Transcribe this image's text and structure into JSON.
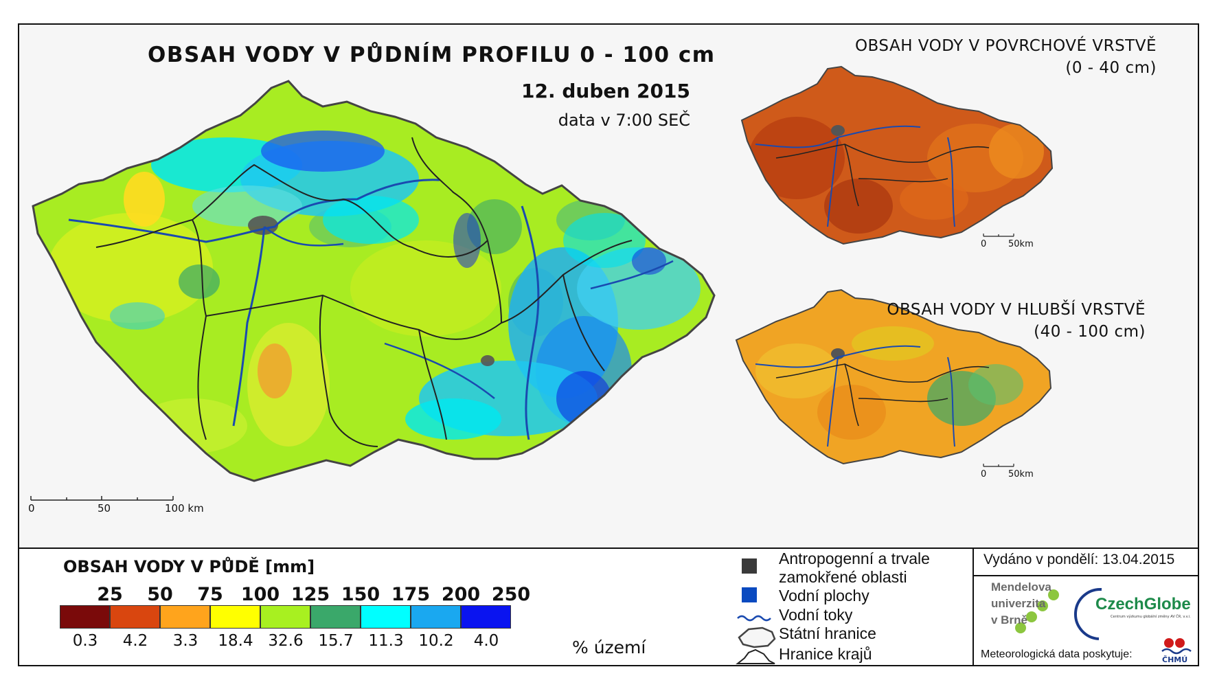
{
  "main_map": {
    "title": "OBSAH VODY V PŮDNÍM PROFILU 0 - 100 cm",
    "date": "12. duben 2015",
    "time_note": "data v 7:00 SEČ",
    "scale": [
      "0",
      "50",
      "100 km"
    ]
  },
  "inset_top": {
    "title_line1": "OBSAH VODY V POVRCHOVÉ VRSTVĚ",
    "title_line2": "(0 - 40 cm)",
    "scale": [
      "0",
      "50km"
    ],
    "dominant_color": "#c8501a"
  },
  "inset_bottom": {
    "title_line1": "OBSAH VODY V HLUBŠÍ VRSTVĚ",
    "title_line2": "(40 - 100 cm)",
    "scale": [
      "0",
      "50km"
    ],
    "dominant_color": "#e8a020"
  },
  "legend": {
    "title": "OBSAH VODY V PŮDĚ [mm]",
    "thresholds": [
      "25",
      "50",
      "75",
      "100",
      "125",
      "150",
      "175",
      "200",
      "250"
    ],
    "classes": [
      {
        "color": "#7a0a0a",
        "pct": "0.3"
      },
      {
        "color": "#d9460f",
        "pct": "4.2"
      },
      {
        "color": "#ffa41c",
        "pct": "3.3"
      },
      {
        "color": "#ffff00",
        "pct": "18.4"
      },
      {
        "color": "#a8f020",
        "pct": "32.6"
      },
      {
        "color": "#3aa86a",
        "pct": "15.7"
      },
      {
        "color": "#00ffff",
        "pct": "11.3"
      },
      {
        "color": "#1aa8f0",
        "pct": "10.2"
      },
      {
        "color": "#0a14f0",
        "pct": "4.0"
      }
    ],
    "unit": "% území"
  },
  "symbols_legend": [
    {
      "icon": "gray-square-icon",
      "label": "Antropogenní a trvale",
      "label2": "zamokřené oblasti"
    },
    {
      "icon": "blue-square-icon",
      "label": "Vodní plochy"
    },
    {
      "icon": "river-line-icon",
      "label": "Vodní toky"
    },
    {
      "icon": "state-border-icon",
      "label": "Státní hranice"
    },
    {
      "icon": "region-border-icon",
      "label": "Hranice krajů"
    }
  ],
  "credits": {
    "issued": "Vydáno v pondělí: 13.04.2015",
    "mendel_line1": "Mendelova",
    "mendel_line2": "univerzita",
    "mendel_line3": "v Brně",
    "czechglobe": "CzechGlobe",
    "czechglobe_sub": "Centrum výzkumu globální změny AV ČR, v.v.i.",
    "meteo": "Meteorologická data poskytuje:",
    "chmu": "ČHMÚ"
  }
}
